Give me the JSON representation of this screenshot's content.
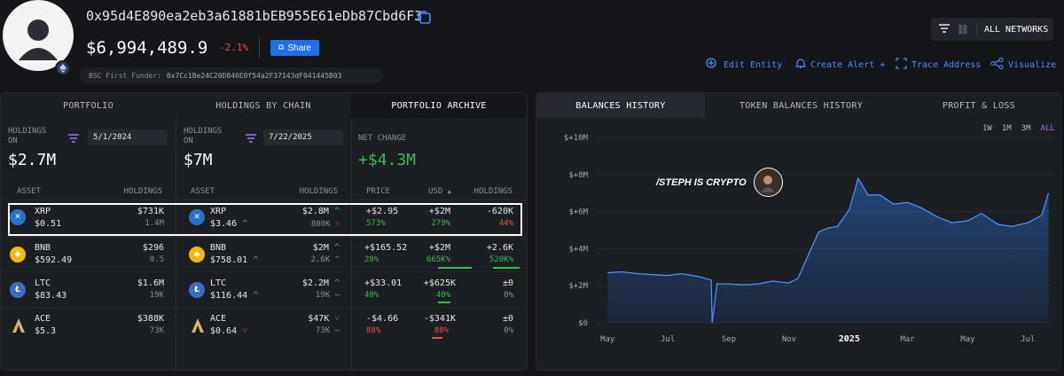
{
  "header": {
    "address": "0x95d4E890ea2eb3a61881bEB955E61eDb87Cbd6F3",
    "balance": "$6,994,489.9",
    "change": "-2.1%",
    "share_label": "Share",
    "funder_label": "BSC First Funder:",
    "funder_address": "0x7Cc1Be24C20D846E0f54a2F37143dF041445B03",
    "network_label": "ALL NETWORKS",
    "actions": [
      "Edit Entity",
      "Create Alert +",
      "Trace Address",
      "Visualize"
    ]
  },
  "portfolio": {
    "tabs": [
      "PORTFOLIO",
      "HOLDINGS BY CHAIN",
      "PORTFOLIO ARCHIVE"
    ],
    "left": {
      "label": "HOLDINGS ON",
      "date": "5/1/2024",
      "total": "$2.7M"
    },
    "mid": {
      "label": "HOLDINGS ON",
      "date": "7/22/2025",
      "total": "$7M"
    },
    "net": {
      "label": "NET CHANGE",
      "total": "+$4.3M"
    },
    "headers": {
      "asset": "ASSET",
      "holdings": "HOLDINGS",
      "price": "PRICE",
      "usd": "USD",
      "holdings2": "HOLDINGS"
    },
    "rows": [
      {
        "sym": "XRP",
        "p1": "$0.51",
        "v1": "$731K",
        "q1": "1.4M",
        "p2": "$3.46",
        "v2": "$2.8M",
        "q2": "800K",
        "dp": "+$2.95",
        "dpp": "573%",
        "du": "+$2M",
        "dup": "279%",
        "dh": "-620K",
        "dhp": "44%"
      },
      {
        "sym": "BNB",
        "p1": "$592.49",
        "v1": "$296",
        "q1": "0.5",
        "p2": "$758.01",
        "v2": "$2M",
        "q2": "2.6K",
        "dp": "+$165.52",
        "dpp": "28%",
        "du": "+$2M",
        "dup": "665K%",
        "dh": "+2.6K",
        "dhp": "520K%"
      },
      {
        "sym": "LTC",
        "p1": "$83.43",
        "v1": "$1.6M",
        "q1": "19K",
        "p2": "$116.44",
        "v2": "$2.2M",
        "q2": "19K",
        "dp": "+$33.01",
        "dpp": "40%",
        "du": "+$625K",
        "dup": "40%",
        "dh": "±0",
        "dhp": "0%"
      },
      {
        "sym": "ACE",
        "p1": "$5.3",
        "v1": "$388K",
        "q1": "73K",
        "p2": "$0.64",
        "v2": "$47K",
        "q2": "73K",
        "dp": "-$4.66",
        "dpp": "88%",
        "du": "-$341K",
        "dup": "88%",
        "dh": "±0",
        "dhp": "0%"
      }
    ]
  },
  "history": {
    "tabs": [
      "BALANCES HISTORY",
      "TOKEN BALANCES HISTORY",
      "PROFIT & LOSS"
    ],
    "ranges": [
      "1W",
      "1M",
      "3M",
      "ALL"
    ],
    "watermark": "/STEPH IS CRYPTO"
  },
  "chart_data": {
    "type": "area",
    "title": "",
    "xlabel": "",
    "ylabel": "",
    "x_ticks": [
      "May",
      "Jul",
      "Sep",
      "Nov",
      "2025",
      "Mar",
      "May",
      "Jul"
    ],
    "y_ticks": [
      "$0",
      "$+2M",
      "$+4M",
      "$+6M",
      "$+8M",
      "$+10M"
    ],
    "ylim": [
      0,
      10000000
    ],
    "x": [
      "2024-05-01",
      "2024-05-15",
      "2024-06-01",
      "2024-06-15",
      "2024-07-01",
      "2024-07-15",
      "2024-08-01",
      "2024-08-14",
      "2024-08-15",
      "2024-08-20",
      "2024-09-01",
      "2024-09-15",
      "2024-10-01",
      "2024-10-15",
      "2024-11-01",
      "2024-11-10",
      "2024-11-20",
      "2024-12-01",
      "2024-12-10",
      "2024-12-20",
      "2025-01-01",
      "2025-01-10",
      "2025-01-20",
      "2025-02-01",
      "2025-02-15",
      "2025-03-01",
      "2025-03-15",
      "2025-04-01",
      "2025-04-15",
      "2025-05-01",
      "2025-05-15",
      "2025-06-01",
      "2025-06-15",
      "2025-07-01",
      "2025-07-15",
      "2025-07-22"
    ],
    "values": [
      2700000,
      2750000,
      2650000,
      2600000,
      2550000,
      2650000,
      2500000,
      2300000,
      0,
      2100000,
      2100000,
      2050000,
      2100000,
      2250000,
      2150000,
      2400000,
      3600000,
      4900000,
      5100000,
      5200000,
      6100000,
      7800000,
      6900000,
      6900000,
      6400000,
      6500000,
      6200000,
      5700000,
      5400000,
      5500000,
      5900000,
      5300000,
      5200000,
      5400000,
      5800000,
      7000000
    ]
  }
}
